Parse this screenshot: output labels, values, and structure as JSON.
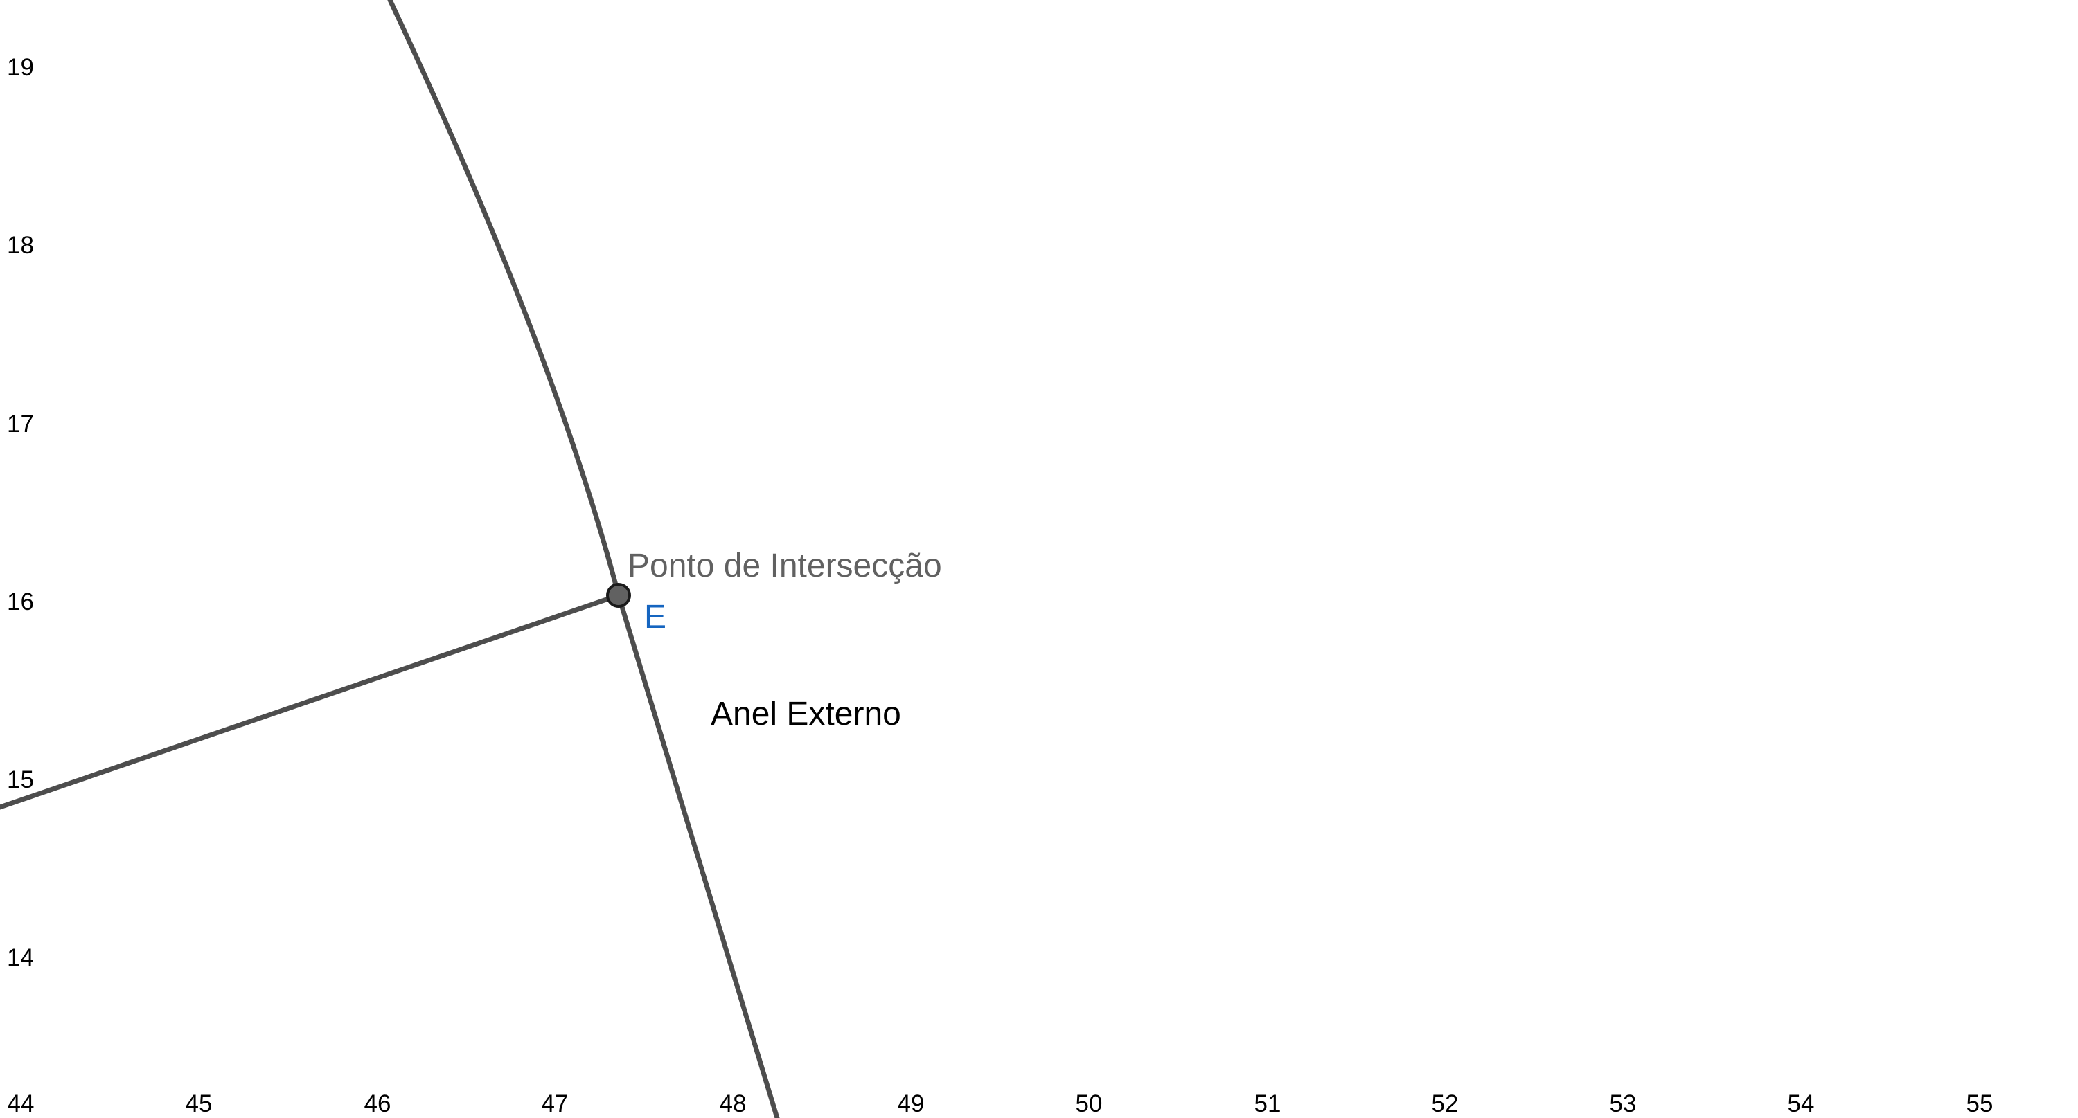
{
  "axes": {
    "x_ticks": [
      "44",
      "45",
      "46",
      "47",
      "48",
      "49",
      "50",
      "51",
      "52",
      "53",
      "54",
      "55"
    ],
    "y_ticks": [
      "19",
      "18",
      "17",
      "16",
      "15",
      "14"
    ]
  },
  "point": {
    "name": "E",
    "caption": "Ponto de Intersecção",
    "x": 47.35,
    "y": 16.0
  },
  "curve_label": "Anel Externo",
  "colors": {
    "axis_text": "#000000",
    "stroke": "#4d4d4d",
    "point_fill": "#616161",
    "point_label": "#1565c0",
    "caption": "#616161",
    "curve_label": "#000000"
  }
}
